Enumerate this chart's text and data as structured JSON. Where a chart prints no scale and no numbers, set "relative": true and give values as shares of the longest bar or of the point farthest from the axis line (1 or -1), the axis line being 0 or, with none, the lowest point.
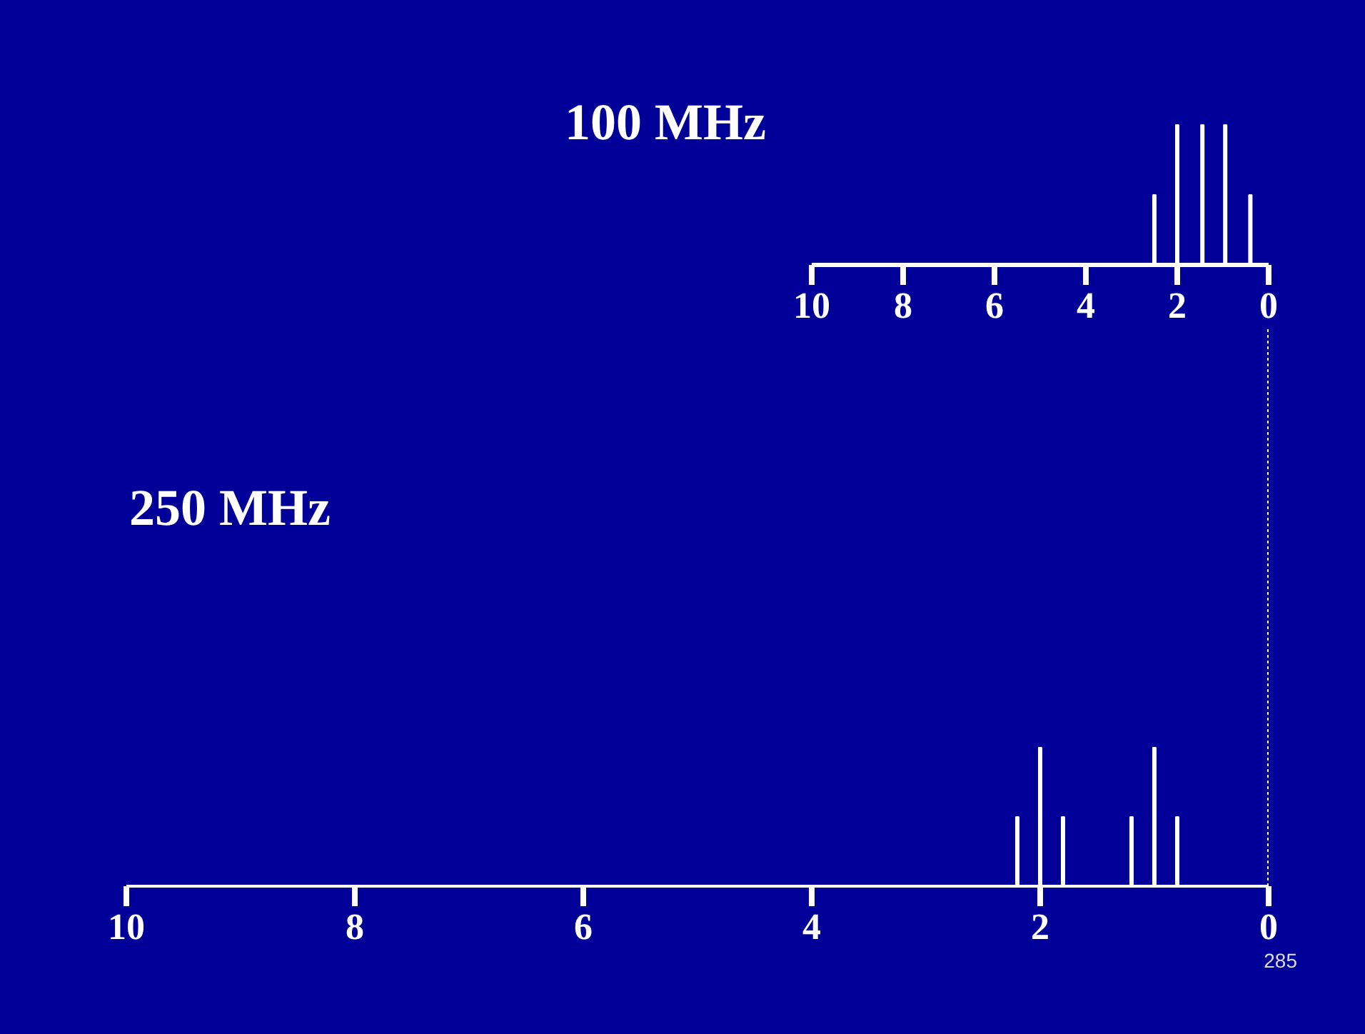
{
  "chart_data": [
    {
      "type": "bar",
      "title": "100 MHz",
      "x": [
        2.5,
        2.0,
        1.45,
        0.95,
        0.4
      ],
      "values": [
        0.5,
        1,
        1,
        1,
        0.5
      ],
      "relative": true,
      "color": "#ffffff",
      "xlim": [
        10,
        0
      ],
      "xticks": [
        10,
        8,
        6,
        4,
        2,
        0
      ],
      "grid": false
    },
    {
      "type": "bar",
      "title": "250 MHz",
      "x": [
        2.2,
        2.0,
        1.8,
        1.2,
        1.0,
        0.8
      ],
      "values": [
        0.5,
        1,
        0.5,
        0.5,
        1,
        0.5
      ],
      "relative": true,
      "color": "#ffffff",
      "xlim": [
        10,
        0
      ],
      "xticks": [
        10,
        8,
        6,
        4,
        2,
        0
      ],
      "grid": false,
      "annotations": [
        "285"
      ]
    }
  ]
}
